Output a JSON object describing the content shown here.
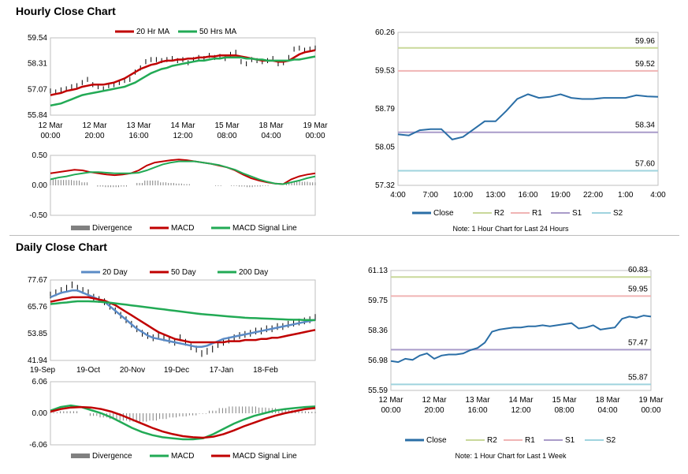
{
  "sections": {
    "hourly_title": "Hourly Close Chart",
    "daily_title": "Daily Close Chart"
  },
  "colors": {
    "ma_short": "#c00000",
    "ma_long": "#22aa55",
    "ma_mid": "#c00000",
    "ma_blue": "#5b8bc6",
    "close": "#2a6ea6",
    "r2": "#c9d89a",
    "r1": "#f0b4b4",
    "s1": "#a99bc9",
    "s2": "#9fd3de",
    "divergence": "#808080",
    "price": "#000000"
  },
  "chart_data": [
    {
      "id": "hourly_price",
      "type": "line",
      "title": "",
      "legend": [
        "20 Hr MA",
        "50 Hrs MA"
      ],
      "y_ticks": [
        "59.54",
        "58.31",
        "57.07",
        "55.84"
      ],
      "ylim": [
        55.84,
        59.54
      ],
      "x_ticks": [
        [
          "12 Mar",
          "00:00"
        ],
        [
          "12 Mar",
          "20:00"
        ],
        [
          "13 Mar",
          "16:00"
        ],
        [
          "14 Mar",
          "12:00"
        ],
        [
          "15 Mar",
          "08:00"
        ],
        [
          "18 Mar",
          "04:00"
        ],
        [
          "19 Mar",
          "00:00"
        ]
      ],
      "price": [
        57.0,
        56.95,
        57.05,
        57.1,
        57.2,
        57.25,
        57.4,
        57.55,
        57.3,
        57.2,
        57.1,
        57.25,
        57.3,
        57.4,
        57.5,
        57.55,
        57.9,
        58.1,
        58.4,
        58.5,
        58.5,
        58.45,
        58.5,
        58.55,
        58.45,
        58.5,
        58.35,
        58.5,
        58.6,
        58.55,
        58.7,
        58.6,
        58.65,
        58.55,
        58.75,
        58.85,
        58.4,
        58.3,
        58.5,
        58.45,
        58.4,
        58.45,
        58.55,
        58.3,
        58.35,
        58.6,
        59.0,
        59.05,
        58.95,
        59.0,
        59.05
      ],
      "series": [
        {
          "name": "20 Hr MA",
          "values": [
            56.8,
            56.85,
            56.9,
            57.0,
            57.05,
            57.1,
            57.2,
            57.25,
            57.3,
            57.3,
            57.3,
            57.35,
            57.4,
            57.5,
            57.6,
            57.75,
            57.9,
            58.05,
            58.15,
            58.25,
            58.3,
            58.4,
            58.45,
            58.45,
            58.5,
            58.5,
            58.55,
            58.55,
            58.6,
            58.6,
            58.65,
            58.65,
            58.7,
            58.7,
            58.7,
            58.7,
            58.65,
            58.6,
            58.55,
            58.5,
            58.45,
            58.45,
            58.45,
            58.4,
            58.4,
            58.45,
            58.6,
            58.75,
            58.85,
            58.9,
            58.95
          ]
        },
        {
          "name": "50 Hrs MA",
          "values": [
            56.3,
            56.35,
            56.4,
            56.5,
            56.6,
            56.7,
            56.8,
            56.85,
            56.9,
            56.95,
            57.0,
            57.05,
            57.1,
            57.15,
            57.2,
            57.3,
            57.4,
            57.55,
            57.7,
            57.85,
            57.95,
            58.05,
            58.1,
            58.2,
            58.25,
            58.3,
            58.35,
            58.4,
            58.45,
            58.45,
            58.5,
            58.55,
            58.55,
            58.6,
            58.6,
            58.6,
            58.6,
            58.55,
            58.55,
            58.5,
            58.5,
            58.45,
            58.45,
            58.45,
            58.45,
            58.45,
            58.5,
            58.5,
            58.55,
            58.6,
            58.65
          ]
        }
      ]
    },
    {
      "id": "hourly_macd",
      "type": "line",
      "y_ticks": [
        "0.50",
        "0.00",
        "-0.50"
      ],
      "ylim": [
        -0.5,
        0.5
      ],
      "legend": [
        "Divergence",
        "MACD",
        "MACD Signal Line"
      ],
      "macd": [
        0.2,
        0.22,
        0.24,
        0.26,
        0.25,
        0.22,
        0.2,
        0.18,
        0.17,
        0.18,
        0.2,
        0.25,
        0.33,
        0.38,
        0.4,
        0.42,
        0.43,
        0.42,
        0.4,
        0.38,
        0.36,
        0.33,
        0.3,
        0.25,
        0.18,
        0.12,
        0.08,
        0.05,
        0.03,
        0.02,
        0.1,
        0.15,
        0.18,
        0.2
      ],
      "signal": [
        0.1,
        0.13,
        0.15,
        0.18,
        0.2,
        0.22,
        0.22,
        0.21,
        0.2,
        0.2,
        0.2,
        0.21,
        0.25,
        0.3,
        0.35,
        0.38,
        0.4,
        0.4,
        0.4,
        0.38,
        0.36,
        0.34,
        0.3,
        0.26,
        0.2,
        0.15,
        0.1,
        0.06,
        0.03,
        0.02,
        0.05,
        0.08,
        0.12,
        0.15
      ]
    },
    {
      "id": "hourly_pivot",
      "type": "line",
      "y_ticks": [
        "60.26",
        "59.53",
        "58.79",
        "58.05",
        "57.32"
      ],
      "ylim": [
        57.32,
        60.26
      ],
      "x_ticks": [
        "4:00",
        "7:00",
        "10:00",
        "13:00",
        "16:00",
        "19:00",
        "22:00",
        "1:00",
        "4:00"
      ],
      "close": [
        58.3,
        58.28,
        58.38,
        58.4,
        58.4,
        58.2,
        58.25,
        58.4,
        58.55,
        58.55,
        58.75,
        58.98,
        59.07,
        59.0,
        59.02,
        59.07,
        59.0,
        58.98,
        58.98,
        59.0,
        59.0,
        59.0,
        59.05,
        59.03,
        59.02
      ],
      "levels": [
        {
          "name": "R2",
          "value": 59.96,
          "label": "59.96"
        },
        {
          "name": "R1",
          "value": 59.52,
          "label": "59.52"
        },
        {
          "name": "S1",
          "value": 58.34,
          "label": "58.34"
        },
        {
          "name": "S2",
          "value": 57.6,
          "label": "57.60"
        }
      ],
      "legend": [
        "Close",
        "R2",
        "R1",
        "S1",
        "S2"
      ],
      "note": "Note: 1 Hour Chart for Last 24 Hours"
    },
    {
      "id": "daily_price",
      "type": "line",
      "legend": [
        "20 Day",
        "50 Day",
        "200 Day"
      ],
      "y_ticks": [
        "77.67",
        "65.76",
        "53.85",
        "41.94"
      ],
      "ylim": [
        41.94,
        77.67
      ],
      "x_ticks": [
        "19-Sep",
        "19-Oct",
        "20-Nov",
        "19-Dec",
        "17-Jan",
        "18-Feb"
      ],
      "price": [
        71,
        72,
        73,
        74,
        75.5,
        74,
        73,
        72,
        70,
        69,
        68,
        66,
        64,
        62,
        60,
        58,
        56,
        54,
        53,
        52,
        53,
        52,
        51,
        50,
        52,
        50,
        48,
        47,
        45,
        46,
        47,
        49,
        50,
        51,
        52,
        53,
        53.5,
        54,
        55,
        55,
        56,
        56,
        57,
        57,
        58,
        58.5,
        59,
        59.5,
        60,
        61
      ],
      "series": [
        {
          "name": "20 Day",
          "values": [
            70,
            71,
            72,
            72.5,
            73,
            73,
            72,
            71,
            70,
            69,
            68,
            66,
            64,
            62,
            60,
            58,
            56,
            54.5,
            53,
            52,
            51.5,
            51,
            50.5,
            50,
            49.5,
            49,
            48.5,
            48,
            48,
            48.5,
            49.5,
            50.5,
            51.5,
            52,
            52.5,
            53,
            53.5,
            54,
            54.5,
            55,
            55.5,
            56,
            56.5,
            57,
            57.5,
            58,
            58.5,
            59,
            59.5,
            60
          ]
        },
        {
          "name": "50 Day",
          "values": [
            68,
            68.5,
            69,
            69.5,
            70,
            70,
            70,
            70,
            69.5,
            69,
            68.5,
            67.5,
            66.5,
            65,
            63.5,
            62,
            60.5,
            59,
            57.5,
            56,
            54.5,
            53.5,
            52.5,
            51.5,
            51,
            50.5,
            50,
            50,
            50,
            50,
            50,
            50,
            50,
            50.5,
            50.5,
            50.5,
            51,
            51,
            51,
            51.5,
            51.5,
            52,
            52,
            52.5,
            53,
            53.5,
            54,
            54.5,
            55,
            55.5
          ]
        },
        {
          "name": "200 Day",
          "values": [
            67,
            67.2,
            67.5,
            67.7,
            68,
            68.2,
            68.2,
            68.2,
            68.1,
            68,
            67.8,
            67.6,
            67.3,
            67,
            66.7,
            66.4,
            66.1,
            65.8,
            65.5,
            65.2,
            64.9,
            64.6,
            64.3,
            64,
            63.7,
            63.4,
            63.1,
            62.8,
            62.5,
            62.3,
            62.1,
            61.9,
            61.7,
            61.5,
            61.3,
            61.1,
            60.9,
            60.8,
            60.7,
            60.6,
            60.5,
            60.4,
            60.3,
            60.2,
            60.1,
            60,
            60,
            59.9,
            59.9,
            59.8
          ]
        }
      ]
    },
    {
      "id": "daily_macd",
      "type": "line",
      "y_ticks": [
        "6.06",
        "0.00",
        "-6.06"
      ],
      "ylim": [
        -6.06,
        6.06
      ],
      "legend": [
        "Divergence",
        "MACD",
        "MACD Signal Line"
      ],
      "macd": [
        0.5,
        1.2,
        1.5,
        1.2,
        0.6,
        0,
        -0.8,
        -1.8,
        -2.8,
        -3.6,
        -4.2,
        -4.6,
        -4.8,
        -5,
        -5,
        -4.8,
        -4,
        -3,
        -2,
        -1.2,
        -0.5,
        0,
        0.5,
        0.8,
        1,
        1.2,
        1.3
      ],
      "signal": [
        0.3,
        0.8,
        1.1,
        1.2,
        1.1,
        0.8,
        0.3,
        -0.4,
        -1.2,
        -2,
        -2.8,
        -3.5,
        -4,
        -4.4,
        -4.6,
        -4.7,
        -4.5,
        -4,
        -3.3,
        -2.5,
        -1.8,
        -1.1,
        -0.5,
        0,
        0.4,
        0.8,
        1
      ]
    },
    {
      "id": "daily_pivot",
      "type": "line",
      "y_ticks": [
        "61.13",
        "59.75",
        "58.36",
        "56.98",
        "55.59"
      ],
      "ylim": [
        55.59,
        61.13
      ],
      "x_ticks": [
        [
          "12 Mar",
          "00:00"
        ],
        [
          "12 Mar",
          "20:00"
        ],
        [
          "13 Mar",
          "16:00"
        ],
        [
          "14 Mar",
          "12:00"
        ],
        [
          "15 Mar",
          "08:00"
        ],
        [
          "18 Mar",
          "04:00"
        ],
        [
          "19 Mar",
          "00:00"
        ]
      ],
      "close": [
        56.95,
        56.9,
        57.05,
        57.0,
        57.2,
        57.3,
        57.05,
        57.2,
        57.25,
        57.25,
        57.3,
        57.45,
        57.55,
        57.8,
        58.3,
        58.4,
        58.45,
        58.5,
        58.5,
        58.55,
        58.55,
        58.6,
        58.55,
        58.6,
        58.65,
        58.7,
        58.45,
        58.5,
        58.6,
        58.4,
        58.45,
        58.5,
        58.9,
        59.0,
        58.95,
        59.05,
        59.0
      ],
      "levels": [
        {
          "name": "R2",
          "value": 60.83,
          "label": "60.83"
        },
        {
          "name": "R1",
          "value": 59.95,
          "label": "59.95"
        },
        {
          "name": "S1",
          "value": 57.47,
          "label": "57.47"
        },
        {
          "name": "S2",
          "value": 55.87,
          "label": "55.87"
        }
      ],
      "legend": [
        "Close",
        "R2",
        "R1",
        "S1",
        "S2"
      ],
      "note": "Note: 1 Hour Chart for Last 1 Week"
    }
  ]
}
